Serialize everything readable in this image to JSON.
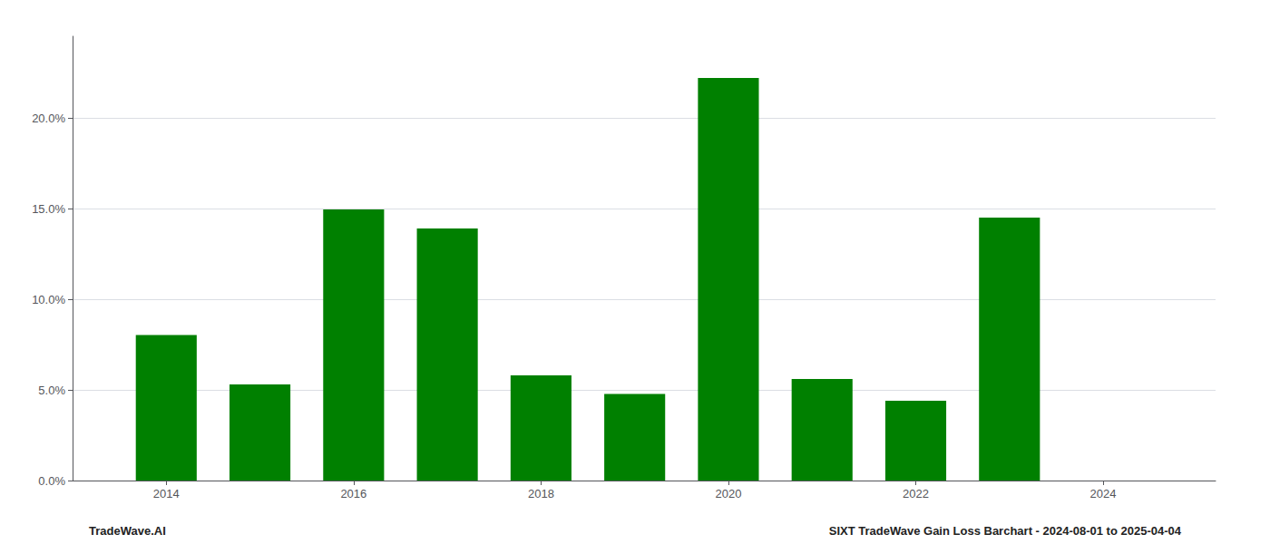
{
  "chart_data": {
    "type": "bar",
    "x": [
      2014,
      2015,
      2016,
      2017,
      2018,
      2019,
      2020,
      2021,
      2022,
      2023,
      2024
    ],
    "values": [
      0.0803,
      0.053,
      0.1495,
      0.139,
      0.058,
      0.0478,
      0.222,
      0.056,
      0.044,
      0.145,
      null
    ],
    "color": "#008000",
    "xlim": [
      2013.0,
      2025.2
    ],
    "xticks": [
      2014,
      2016,
      2018,
      2020,
      2022,
      2024
    ],
    "ylim": [
      0,
      0.245
    ],
    "yticks": [
      {
        "value": 0.0,
        "label": "0.0%"
      },
      {
        "value": 0.05,
        "label": "5.0%"
      },
      {
        "value": 0.1,
        "label": "10.0%"
      },
      {
        "value": 0.15,
        "label": "15.0%"
      },
      {
        "value": 0.2,
        "label": "20.0%"
      }
    ],
    "grid": true,
    "annotations": [
      "TradeWave.AI",
      "SIXT TradeWave Gain Loss Barchart - 2024-08-01 to 2025-04-04"
    ]
  }
}
